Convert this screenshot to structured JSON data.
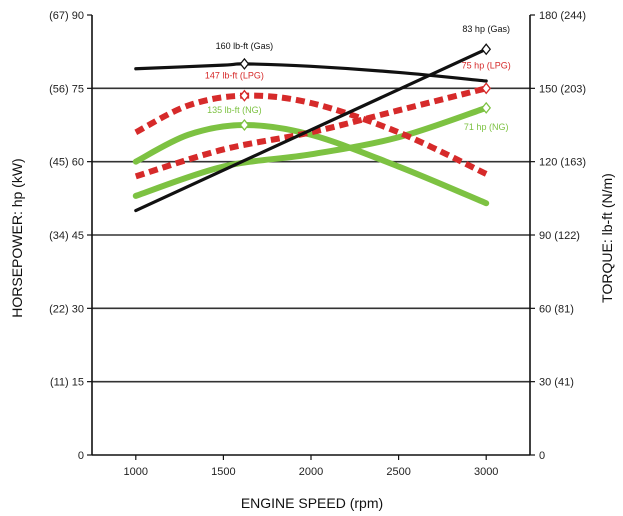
{
  "chart_data": {
    "type": "line",
    "xlabel": "ENGINE SPEED (rpm)",
    "ylabel_left": "HORSEPOWER: hp (kW)",
    "ylabel_right": "TORQUE: lb-ft (N/m)",
    "x_ticks": [
      1000,
      1500,
      2000,
      2500,
      3000
    ],
    "xlim": [
      750,
      3250
    ],
    "left_axis": {
      "ylim": [
        0,
        90
      ],
      "ticks": [
        {
          "value": 90,
          "label": "(67) 90"
        },
        {
          "value": 75,
          "label": "(56) 75"
        },
        {
          "value": 60,
          "label": "(45) 60"
        },
        {
          "value": 45,
          "label": "(34) 45"
        },
        {
          "value": 30,
          "label": "(22) 30"
        },
        {
          "value": 15,
          "label": "(11) 15"
        },
        {
          "value": 0,
          "label": "0"
        }
      ]
    },
    "right_axis": {
      "ylim": [
        0,
        180
      ],
      "ticks": [
        {
          "value": 180,
          "label": "180 (244)"
        },
        {
          "value": 150,
          "label": "150 (203)"
        },
        {
          "value": 120,
          "label": "120 (163)"
        },
        {
          "value": 90,
          "label": "90 (122)"
        },
        {
          "value": 60,
          "label": "60 (81)"
        },
        {
          "value": 30,
          "label": "30 (41)"
        },
        {
          "value": 0,
          "label": "0"
        }
      ]
    },
    "gridlines_left": [
      15,
      30,
      45,
      60,
      75
    ],
    "series": [
      {
        "key": "torque_gas",
        "axis": "right",
        "color": "#111111",
        "style": "solid",
        "x": [
          1000,
          1500,
          1620,
          2000,
          2500,
          3000
        ],
        "y": [
          158,
          159.5,
          160,
          159,
          156.5,
          153
        ]
      },
      {
        "key": "hp_gas",
        "axis": "left",
        "color": "#111111",
        "style": "solid",
        "x": [
          1000,
          1500,
          2000,
          2500,
          3000
        ],
        "y": [
          50,
          57.5,
          65,
          73,
          83
        ]
      },
      {
        "key": "torque_lpg",
        "axis": "right",
        "color": "#d62a2a",
        "style": "dashed",
        "x": [
          1000,
          1300,
          1620,
          2000,
          2500,
          3000
        ],
        "y": [
          132,
          143,
          147,
          144,
          132,
          115
        ]
      },
      {
        "key": "hp_lpg",
        "axis": "left",
        "color": "#d62a2a",
        "style": "dashed",
        "x": [
          1000,
          1500,
          2000,
          2500,
          3000
        ],
        "y": [
          57,
          62.5,
          66,
          70.5,
          75
        ]
      },
      {
        "key": "torque_ng",
        "axis": "right",
        "color": "#7dc242",
        "style": "solid",
        "x": [
          1000,
          1300,
          1620,
          2000,
          2500,
          3000
        ],
        "y": [
          120,
          131,
          135,
          131,
          118,
          103
        ]
      },
      {
        "key": "hp_ng",
        "axis": "left",
        "color": "#7dc242",
        "style": "solid",
        "x": [
          1000,
          1500,
          2000,
          2500,
          3000
        ],
        "y": [
          53,
          59,
          61.5,
          65,
          71
        ]
      }
    ],
    "annotations": [
      {
        "text": "160 lb-ft (Gas)",
        "color": "#111111",
        "marker_x": 1620,
        "marker_y": 160,
        "axis": "right"
      },
      {
        "text": "83 hp (Gas)",
        "color": "#111111",
        "marker_x": 3000,
        "marker_y": 83,
        "axis": "left"
      },
      {
        "text": "147 lb-ft (LPG)",
        "color": "#d62a2a",
        "marker_x": 1620,
        "marker_y": 147,
        "axis": "right"
      },
      {
        "text": "75 hp (LPG)",
        "color": "#d62a2a",
        "marker_x": 3000,
        "marker_y": 75,
        "axis": "left"
      },
      {
        "text": "135 lb-ft (NG)",
        "color": "#7dc242",
        "marker_x": 1620,
        "marker_y": 135,
        "axis": "right"
      },
      {
        "text": "71 hp (NG)",
        "color": "#7dc242",
        "marker_x": 3000,
        "marker_y": 71,
        "axis": "left"
      }
    ]
  }
}
